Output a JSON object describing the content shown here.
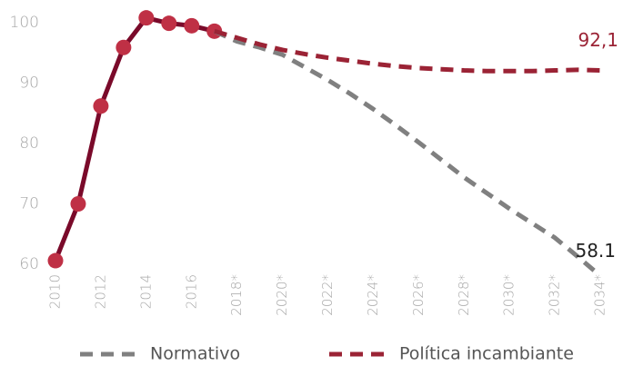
{
  "chart_data": {
    "type": "line",
    "categories": [
      "2010",
      null,
      "2012",
      null,
      "2014",
      null,
      "2016",
      null,
      "2018*",
      null,
      "2020*",
      null,
      "2022*",
      null,
      "2024*",
      null,
      "2026*",
      null,
      "2028*",
      null,
      "2030*",
      null,
      "2032*",
      null,
      "2034*"
    ],
    "series": [
      {
        "color": "#7a0a2a",
        "marker_color": "#bf3045",
        "dashed": false,
        "markers": true,
        "values": [
          60.6,
          70,
          86.2,
          95.9,
          100.8,
          99.9,
          99.5,
          98.6,
          null,
          null,
          null,
          null,
          null,
          null,
          null,
          null,
          null,
          null,
          null,
          null,
          null,
          null,
          null,
          null,
          null
        ]
      },
      {
        "name": "Normativo",
        "color": "#808080",
        "dashed": true,
        "markers": false,
        "values": [
          null,
          null,
          null,
          null,
          null,
          null,
          null,
          98.6,
          96.9,
          95.9,
          94.7,
          92.6,
          90.5,
          88.2,
          85.7,
          83.0,
          80.2,
          77.3,
          74.4,
          71.8,
          69.2,
          66.8,
          64.4,
          61.3,
          58.1
        ],
        "value_labels": [
          null,
          null,
          null,
          null,
          null,
          null,
          null,
          null,
          null,
          null,
          null,
          null,
          null,
          null,
          null,
          null,
          null,
          null,
          null,
          null,
          null,
          null,
          null,
          null,
          "58.1"
        ]
      },
      {
        "name": "Política incambiante",
        "color": "#9b2335",
        "dashed": true,
        "markers": false,
        "values": [
          null,
          null,
          null,
          null,
          null,
          null,
          null,
          98.6,
          97.5,
          96.4,
          95.5,
          94.8,
          94.2,
          93.7,
          93.2,
          92.8,
          92.5,
          92.3,
          92.1,
          92.0,
          92.0,
          92.0,
          92.1,
          92.2,
          92.1
        ],
        "value_labels": [
          null,
          null,
          null,
          null,
          null,
          null,
          null,
          null,
          null,
          null,
          null,
          null,
          null,
          null,
          null,
          null,
          null,
          null,
          null,
          null,
          null,
          null,
          null,
          null,
          "92,1"
        ]
      }
    ],
    "ylim": [
      57,
      102
    ],
    "yticks": [
      60,
      70,
      80,
      90,
      100
    ],
    "grid": false
  }
}
